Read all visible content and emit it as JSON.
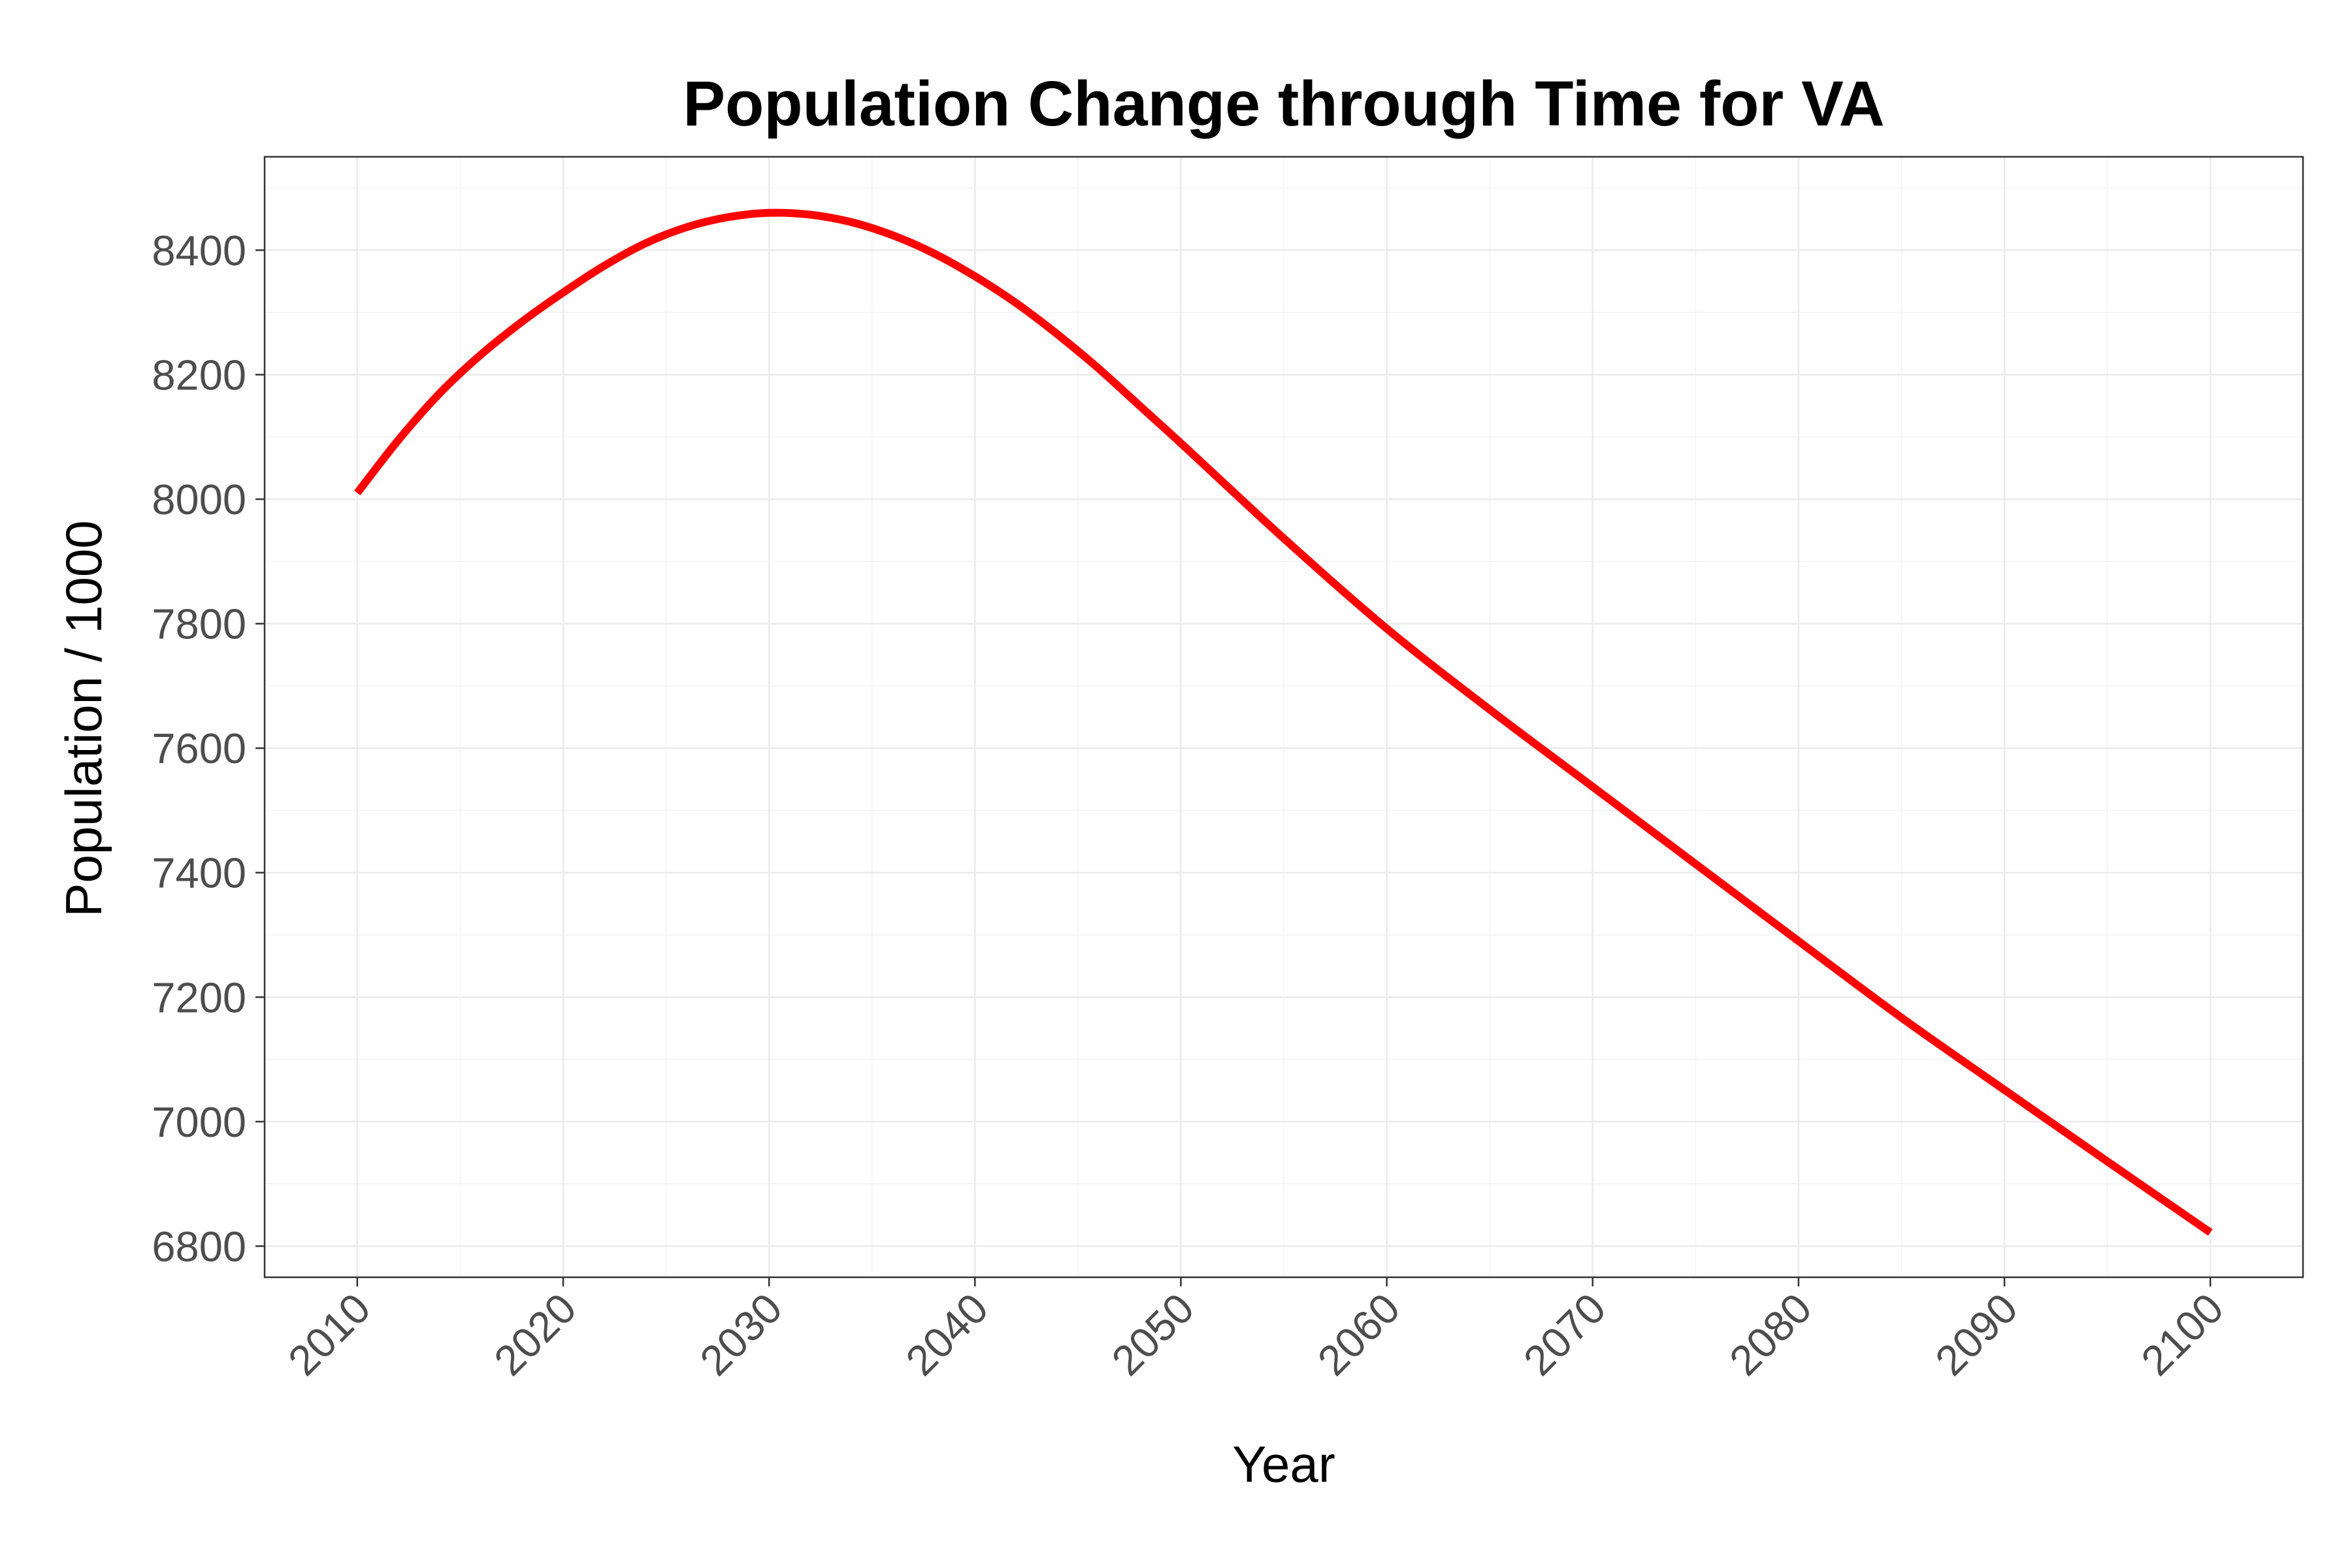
{
  "chart_data": {
    "type": "line",
    "title": "Population Change through Time for VA",
    "xlabel": "Year",
    "ylabel": "Population / 1000",
    "xlim": [
      2005.5,
      2104.5
    ],
    "ylim": [
      6750,
      8550
    ],
    "x_ticks": [
      2010,
      2020,
      2030,
      2040,
      2050,
      2060,
      2070,
      2080,
      2090,
      2100
    ],
    "y_ticks": [
      6800,
      7000,
      7200,
      7400,
      7600,
      7800,
      8000,
      8200,
      8400
    ],
    "grid": true,
    "legend": "none",
    "series_color": "#ff0000",
    "series": [
      {
        "x": [
          2010,
          2012,
          2014,
          2016,
          2018,
          2020,
          2022,
          2024,
          2026,
          2028,
          2030,
          2032,
          2034,
          2036,
          2038,
          2040,
          2042,
          2044,
          2046,
          2048,
          2050,
          2055,
          2060,
          2065,
          2070,
          2075,
          2080,
          2085,
          2090,
          2095,
          2100
        ],
        "y": [
          8010,
          8095,
          8170,
          8232,
          8285,
          8332,
          8375,
          8411,
          8437,
          8453,
          8460,
          8457,
          8445,
          8424,
          8395,
          8358,
          8315,
          8265,
          8210,
          8150,
          8090,
          7937,
          7792,
          7662,
          7538,
          7414,
          7290,
          7167,
          7051,
          6936,
          6822
        ]
      }
    ]
  }
}
